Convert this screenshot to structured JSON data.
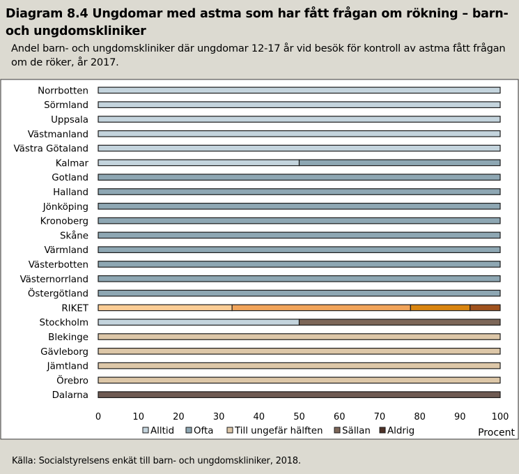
{
  "title": "Diagram 8.4 Ungdomar med astma som har fått frågan om rökning – barn- och ungdomskliniker",
  "subtitle": "Andel barn- och ungdomskliniker där ungdomar 12-17  år vid besök för kontroll av astma fått frågan om de röker, år 2017.",
  "source": "Källa: Socialstyrelsens enkät till barn- och ungdomskliniker, 2018.",
  "colors": {
    "Alltid": "#c4d4dd",
    "Ofta": "#8ea7b3",
    "Till ungefär hälften": "#ddc7a8",
    "Sällan": "#7d6759",
    "Aldrig": "#4e3228",
    "RIKET_Alltid": "#fbcd95",
    "RIKET_Ofta": "#f1a45a",
    "RIKET_Till ungefär hälften": "#d98510",
    "RIKET_Sällan": "#a0521e",
    "RIKET_Aldrig": "#7a2c10",
    "Dalarna_Aldrig": "#6e5a52"
  },
  "chart_data": {
    "type": "bar",
    "orientation": "horizontal",
    "stacked": true,
    "categories": [
      "Norrbotten",
      "Sörmland",
      "Uppsala",
      "Västmanland",
      "Västra Götaland",
      "Kalmar",
      "Gotland",
      "Halland",
      "Jönköping",
      "Kronoberg",
      "Skåne",
      "Värmland",
      "Västerbotten",
      "Västernorrland",
      "Östergötland",
      "RIKET",
      "Stockholm",
      "Blekinge",
      "Gävleborg",
      "Jämtland",
      "Örebro",
      "Dalarna"
    ],
    "series": [
      {
        "name": "Alltid",
        "values": [
          100,
          100,
          100,
          100,
          100,
          50,
          0,
          0,
          0,
          0,
          0,
          0,
          0,
          0,
          0,
          33.3,
          50,
          0,
          0,
          0,
          0,
          0
        ]
      },
      {
        "name": "Ofta",
        "values": [
          0,
          0,
          0,
          0,
          0,
          50,
          100,
          100,
          100,
          100,
          100,
          100,
          100,
          100,
          100,
          44.4,
          0,
          0,
          0,
          0,
          0,
          0
        ]
      },
      {
        "name": "Till ungefär hälften",
        "values": [
          0,
          0,
          0,
          0,
          0,
          0,
          0,
          0,
          0,
          0,
          0,
          0,
          0,
          0,
          0,
          14.8,
          0,
          100,
          100,
          100,
          100,
          0
        ]
      },
      {
        "name": "Sällan",
        "values": [
          0,
          0,
          0,
          0,
          0,
          0,
          0,
          0,
          0,
          0,
          0,
          0,
          0,
          0,
          0,
          7.5,
          50,
          0,
          0,
          0,
          0,
          0
        ]
      },
      {
        "name": "Aldrig",
        "values": [
          0,
          0,
          0,
          0,
          0,
          0,
          0,
          0,
          0,
          0,
          0,
          0,
          0,
          0,
          0,
          0,
          0,
          0,
          0,
          0,
          0,
          100
        ]
      }
    ],
    "xlim": [
      0,
      100
    ],
    "xticks": [
      0,
      10,
      20,
      30,
      40,
      50,
      60,
      70,
      80,
      90,
      100
    ],
    "xlabel": "Procent",
    "legend_placement": "bottom",
    "grid": false
  }
}
